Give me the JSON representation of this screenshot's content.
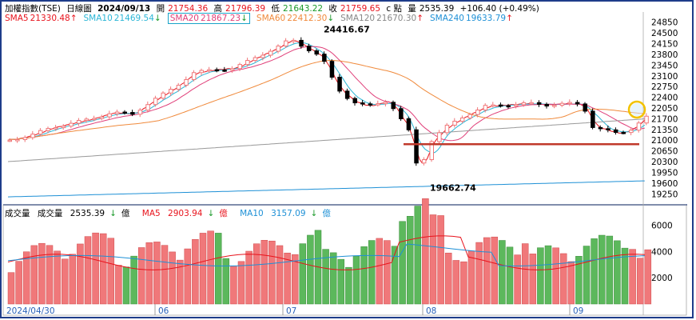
{
  "header": {
    "index_name": "加權指數(TSE)",
    "period": "日線圖",
    "date": "2024/09/13",
    "open_label": "開",
    "open": "21754.36",
    "high_label": "高",
    "high": "21796.39",
    "low_label": "低",
    "low": "21643.22",
    "close_label": "收",
    "close": "21759.65",
    "close_suffix": "c 點",
    "volume_label": "量",
    "volume": "2535.39",
    "change": "+106.40 (+0.49%)"
  },
  "sma": [
    {
      "label": "SMA5",
      "value": "21330.48",
      "arrow": "↑",
      "color": "#e8131c"
    },
    {
      "label": "SMA10",
      "value": "21469.54",
      "arrow": "↓",
      "color": "#2bb6d6"
    },
    {
      "label": "SMA20",
      "value": "21867.23",
      "arrow": "↓",
      "color": "#e0407a"
    },
    {
      "label": "SMA60",
      "value": "22412.30",
      "arrow": "↓",
      "color": "#f08a3c"
    },
    {
      "label": "SMA120",
      "value": "21670.30",
      "arrow": "↑",
      "color": "#888888"
    },
    {
      "label": "SMA240",
      "value": "19633.79",
      "arrow": "↑",
      "color": "#1e90d6"
    }
  ],
  "volume_header": {
    "title": "成交量",
    "vol_label": "成交量",
    "vol_value": "2535.39",
    "vol_arrow": "↓",
    "vol_unit": "億",
    "ma5_label": "MA5",
    "ma5_value": "2903.94",
    "ma5_arrow": "↓",
    "ma5_unit": "億",
    "ma10_label": "MA10",
    "ma10_value": "3157.09",
    "ma10_arrow": "↓",
    "ma10_unit": "億"
  },
  "colors": {
    "up": "#f0787a",
    "down": "#5cb85c",
    "support": "#c0392b",
    "highlight": "#f2c200"
  },
  "chart_data": {
    "type": "candlestick",
    "price_ticks": [
      "24850",
      "24500",
      "24150",
      "23800",
      "23450",
      "23100",
      "22750",
      "22400",
      "22050",
      "21700",
      "21350",
      "21000",
      "20650",
      "20300",
      "19950",
      "19600",
      "19250"
    ],
    "volume_ticks": [
      "6000",
      "4000",
      "2000"
    ],
    "x_labels": [
      "2024/04/30",
      "06",
      "07",
      "08",
      "09"
    ],
    "annotations": {
      "high": "24416.67",
      "low": "19662.74",
      "support_level": 20870
    },
    "ylim": [
      18950,
      25050
    ],
    "vol_ylim": [
      0,
      7000
    ]
  }
}
